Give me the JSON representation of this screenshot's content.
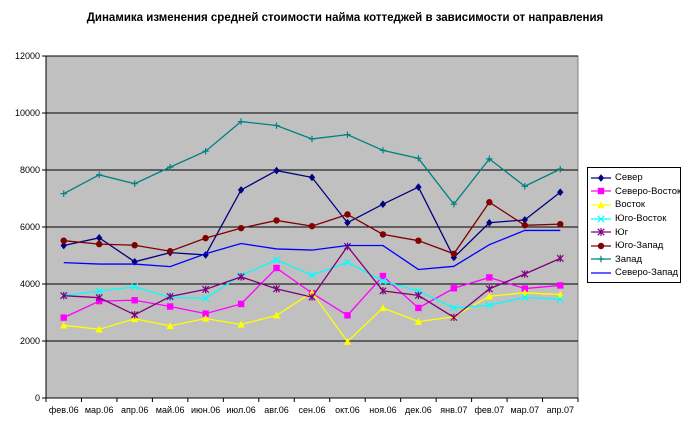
{
  "chart_data": {
    "type": "line",
    "title": "Динамика изменения средней стоимости найма коттеджей в зависимости от направления",
    "xlabel": "",
    "ylabel": "",
    "categories": [
      "фев.06",
      "мар.06",
      "апр.06",
      "май.06",
      "июн.06",
      "июл.06",
      "авг.06",
      "сен.06",
      "окт.06",
      "ноя.06",
      "дек.06",
      "янв.07",
      "фев.07",
      "мар.07",
      "апр.07"
    ],
    "ylim": [
      0,
      12000
    ],
    "yticks": [
      "0",
      "2000",
      "4000",
      "6000",
      "8000",
      "10000",
      "12000"
    ],
    "grid": "horizontal",
    "legend_position": "right",
    "plot_background": "#c0c0c0",
    "series": [
      {
        "name": "Север",
        "color": "#000080",
        "marker": "diamond",
        "values": [
          5350,
          5620,
          4780,
          5100,
          5020,
          7300,
          7980,
          7740,
          6150,
          6800,
          7400,
          4930,
          6150,
          6250,
          7220
        ]
      },
      {
        "name": "Северо-Восток",
        "color": "#ff00ff",
        "marker": "square",
        "values": [
          2820,
          3400,
          3430,
          3210,
          2960,
          3300,
          4560,
          3680,
          2900,
          4280,
          3160,
          3850,
          4230,
          3840,
          3950
        ]
      },
      {
        "name": "Восток",
        "color": "#ffff00",
        "marker": "triangle",
        "values": [
          2550,
          2410,
          2780,
          2530,
          2790,
          2580,
          2900,
          3700,
          1980,
          3160,
          2680,
          2850,
          3570,
          3690,
          3630
        ]
      },
      {
        "name": "Юго-Восток",
        "color": "#00ffff",
        "marker": "x",
        "values": [
          3600,
          3750,
          3900,
          3530,
          3500,
          4300,
          4850,
          4310,
          4760,
          4100,
          3760,
          3160,
          3260,
          3530,
          3460
        ]
      },
      {
        "name": "Юг",
        "color": "#800080",
        "marker": "star",
        "values": [
          3590,
          3520,
          2920,
          3560,
          3810,
          4250,
          3830,
          3540,
          5320,
          3760,
          3600,
          2830,
          3830,
          4350,
          4900
        ]
      },
      {
        "name": "Юго-Запад",
        "color": "#800000",
        "marker": "circle",
        "values": [
          5520,
          5400,
          5360,
          5150,
          5610,
          5960,
          6230,
          6030,
          6440,
          5740,
          5520,
          5060,
          6870,
          6060,
          6100
        ]
      },
      {
        "name": "Запад",
        "color": "#008080",
        "marker": "plus",
        "values": [
          7170,
          7830,
          7520,
          8100,
          8660,
          9700,
          9560,
          9090,
          9240,
          8690,
          8410,
          6800,
          8390,
          7430,
          8030
        ]
      },
      {
        "name": "Северо-Запад",
        "color": "#0000ff",
        "marker": "none",
        "values": [
          4750,
          4700,
          4700,
          4610,
          5060,
          5420,
          5230,
          5190,
          5350,
          5350,
          4510,
          4620,
          5380,
          5880,
          5880
        ]
      }
    ]
  }
}
